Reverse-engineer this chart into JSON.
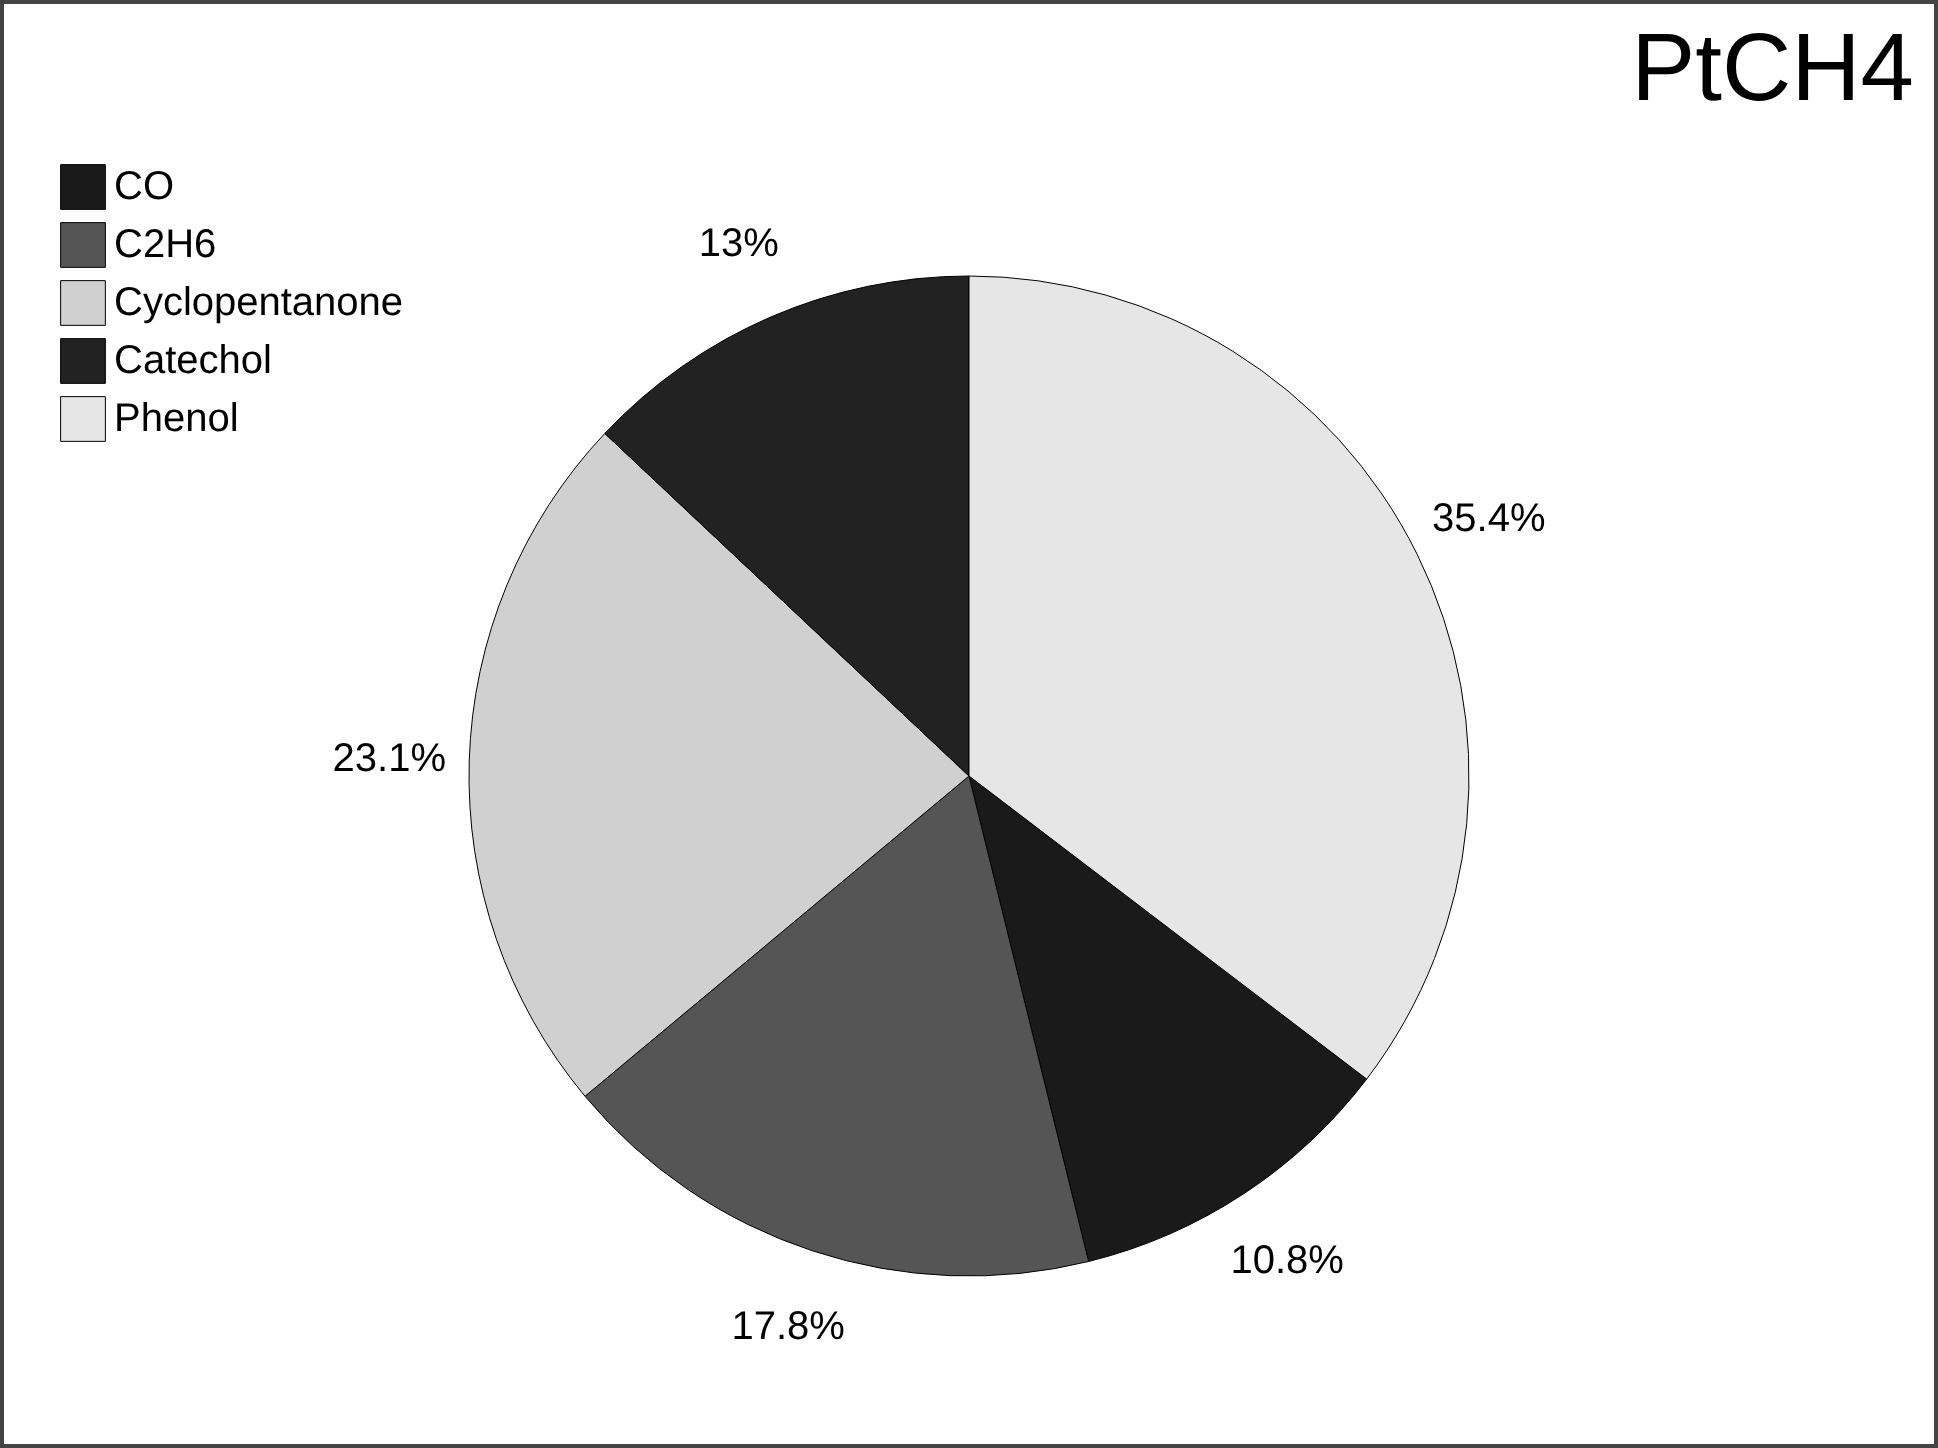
{
  "chart_data": {
    "type": "pie",
    "title": "PtCH4",
    "categories": [
      "CO",
      "C2H6",
      "Cyclopentanone",
      "Catechol",
      "Phenol"
    ],
    "values": [
      10.8,
      17.8,
      23.1,
      13,
      35.4
    ],
    "colors": [
      "#1a1a1a",
      "#555555",
      "#d0d0d0",
      "#222222",
      "#e6e6e6"
    ],
    "value_labels": [
      "10.8%",
      "17.8%",
      "23.1%",
      "13%",
      "35.4%"
    ],
    "legend": "top left"
  }
}
